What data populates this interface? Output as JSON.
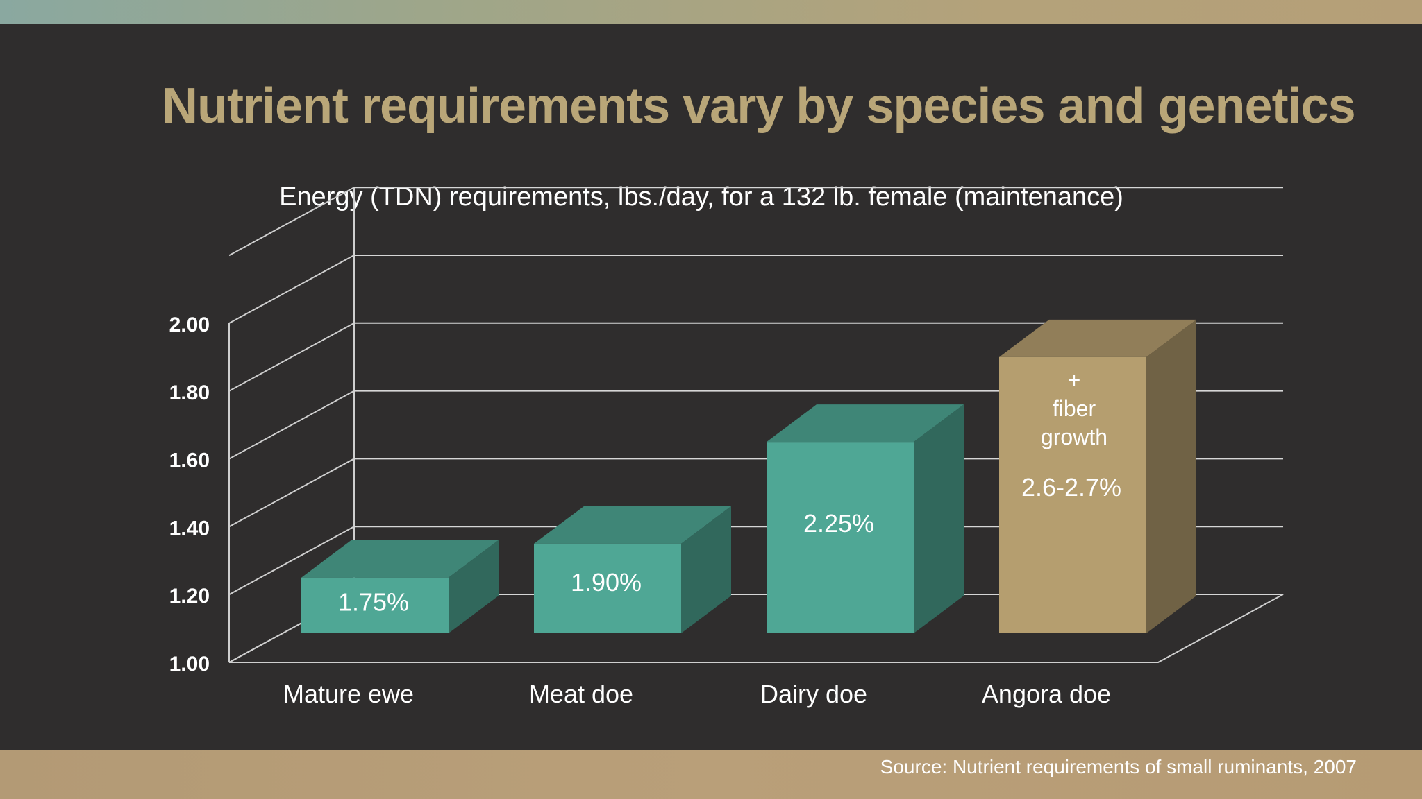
{
  "slide": {
    "title": "Nutrient requirements vary by species and genetics",
    "source": "Source:  Nutrient requirements of small ruminants, 2007",
    "colors": {
      "background": "#2f2d2d",
      "title": "#b9a678",
      "teal_bar": "#4fa795",
      "tan_bar": "#b59e6f"
    }
  },
  "chart_data": {
    "type": "bar",
    "title": "Energy (TDN) requirements, lbs./day, for a 132 lb. female (maintenance)",
    "categories": [
      "Mature ewe",
      "Meat doe",
      "Dairy doe",
      "Angora doe"
    ],
    "values": [
      1.25,
      1.35,
      1.65,
      1.9
    ],
    "data_labels": [
      "1.75%",
      "1.90%",
      "2.25%",
      "2.6-2.7%"
    ],
    "annotations": [
      {
        "category": "Angora doe",
        "lines": [
          "+",
          "fiber",
          "growth"
        ]
      }
    ],
    "bar_colors": [
      "#4fa795",
      "#4fa795",
      "#4fa795",
      "#b59e6f"
    ],
    "yticks": [
      "1.00",
      "1.20",
      "1.40",
      "1.60",
      "1.80",
      "2.00"
    ],
    "ylim": [
      1.0,
      2.0
    ],
    "grid": true,
    "style": "3d"
  }
}
